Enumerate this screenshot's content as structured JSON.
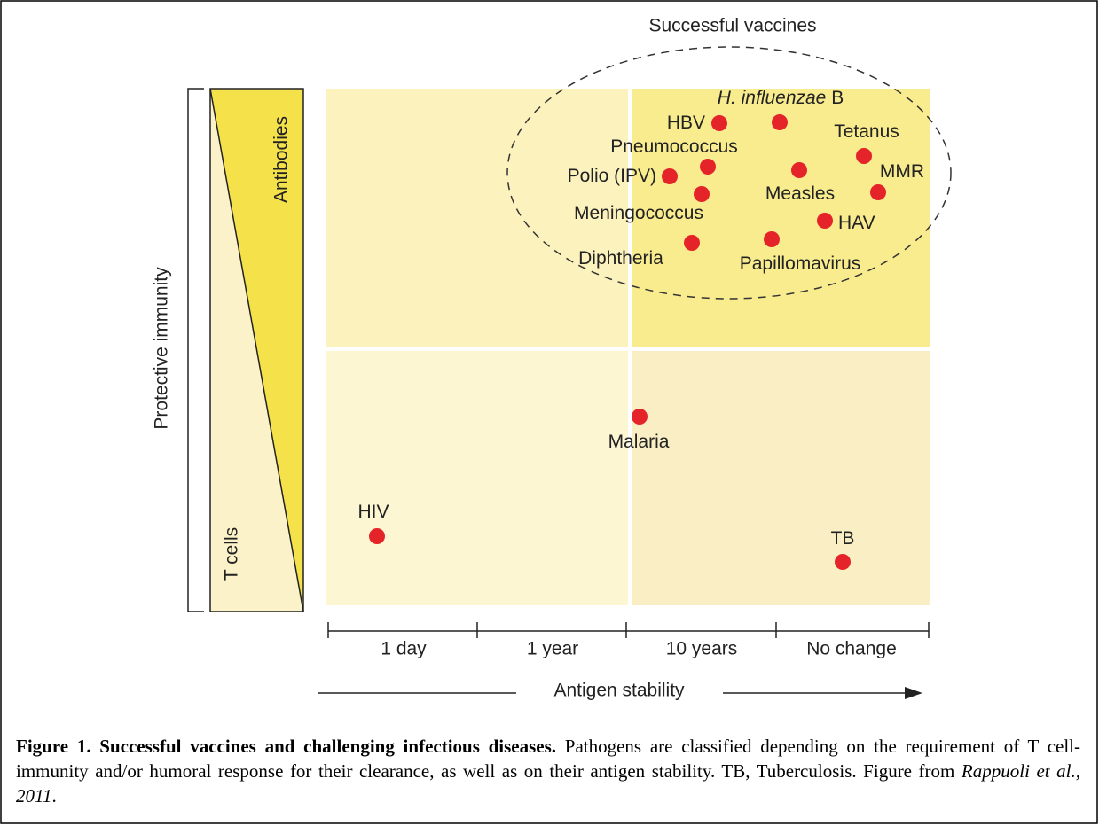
{
  "figure": {
    "group_label": "Successful vaccines",
    "y_axis_label": "Protective immunity",
    "gradient_top": "Antibodies",
    "gradient_bottom": "T cells",
    "x_axis_label": "Antigen stability",
    "x_categories": [
      "1 day",
      "1 year",
      "10 years",
      "No change"
    ],
    "points": [
      {
        "label": "HBV"
      },
      {
        "label_italic": "H. influenzae",
        "label": "B"
      },
      {
        "label": "Tetanus"
      },
      {
        "label": "Pneumococcus"
      },
      {
        "label": "Polio (IPV)"
      },
      {
        "label": "Measles"
      },
      {
        "label": "MMR"
      },
      {
        "label": "Meningococcus"
      },
      {
        "label": "HAV"
      },
      {
        "label": "Diphtheria"
      },
      {
        "label": "Papillomavirus"
      },
      {
        "label": "Malaria"
      },
      {
        "label": "HIV"
      },
      {
        "label": "TB"
      }
    ]
  },
  "caption": {
    "bold": "Figure 1. Successful vaccines and challenging infectious diseases.",
    "text": "Pathogens are classified depending on the requirement of T cell-immunity and/or humoral response for their clearance, as well as on their antigen stability. TB, Tuberculosis. Figure from",
    "citation": "Rappuoli et al., 2011",
    "end": "."
  }
}
